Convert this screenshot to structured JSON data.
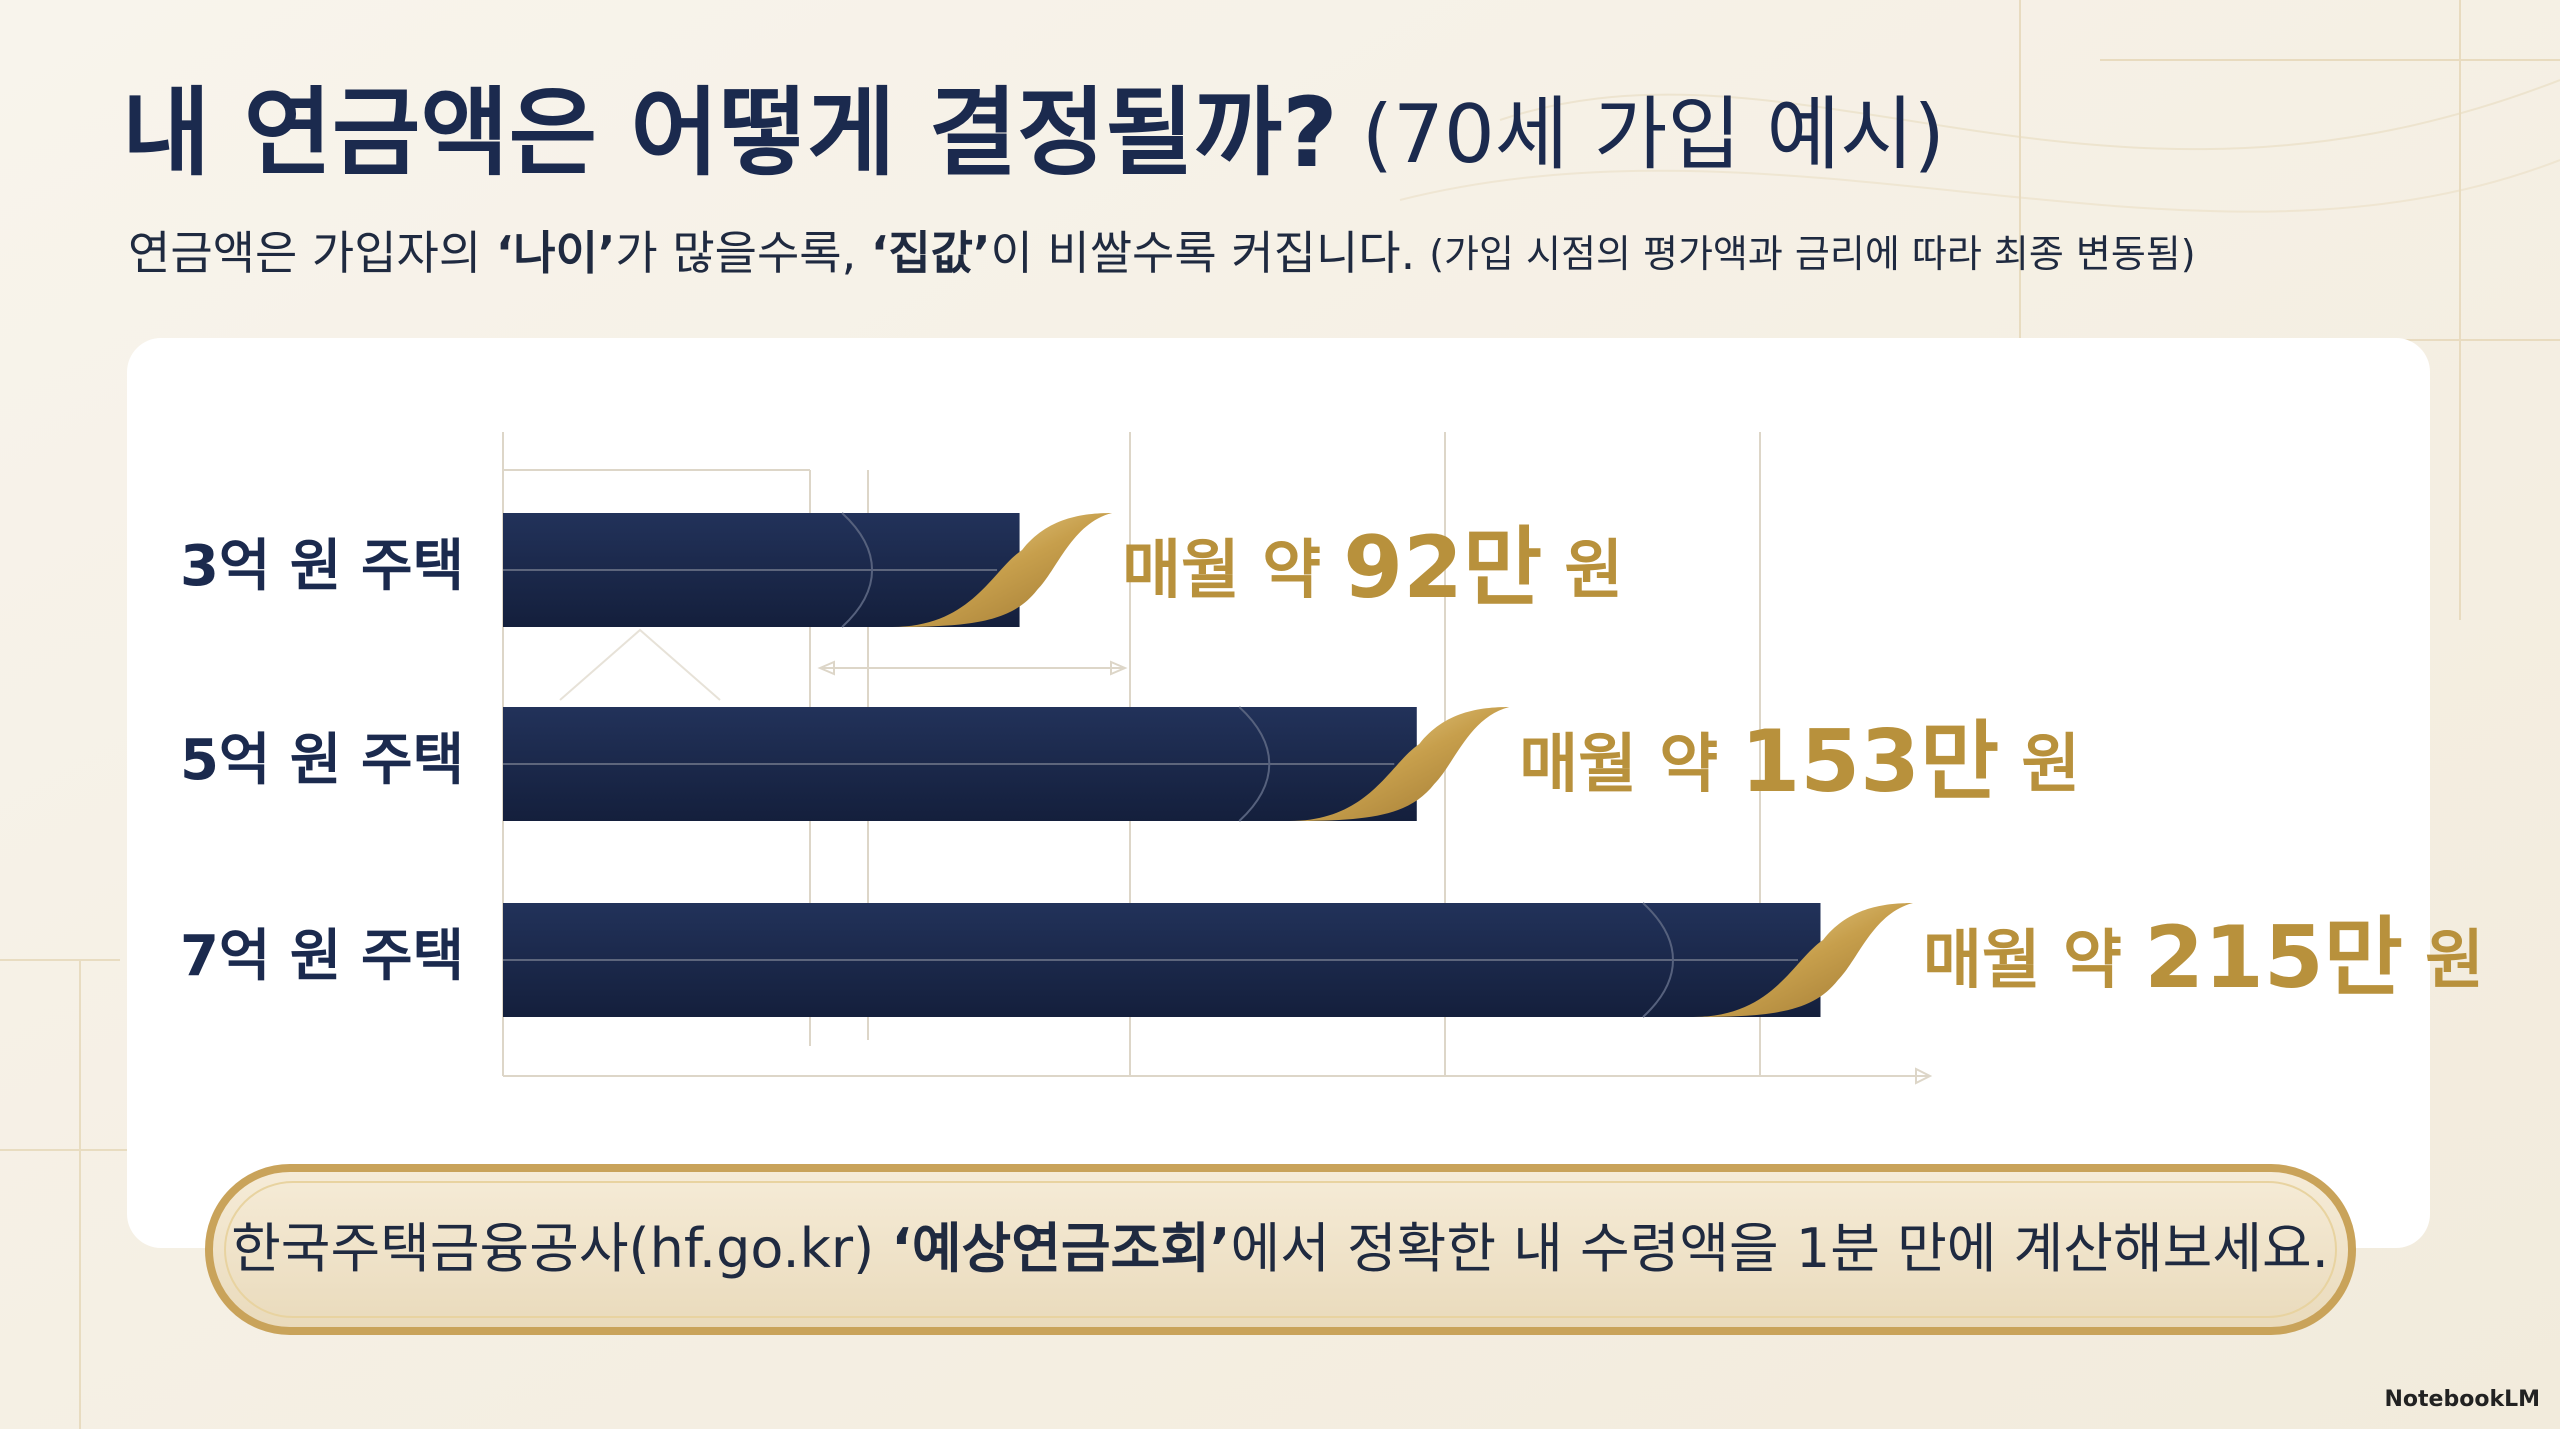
{
  "chart_data": {
    "type": "bar",
    "orientation": "horizontal",
    "title": "내 연금액은 어떻게 결정될까?",
    "title_note": "(70세 가입 예시)",
    "subtitle": [
      "연금액은 가입자의 ",
      "‘나이’",
      "가 많을수록, ",
      "‘집값’",
      "이 비쌀수록 커집니다."
    ],
    "subtitle_note": "(가입 시점의 평가액과 금리에 따라 최종 변동됨)",
    "categories": [
      "3억 원 주택",
      "5억 원 주택",
      "7억 원 주택"
    ],
    "values": [
      92,
      153,
      215
    ],
    "value_labels": [
      "매월 약 92만 원",
      "매월 약 153만 원",
      "매월 약 215만 원"
    ],
    "color": "#1b2a4e",
    "accent_color": "#b8913c",
    "footer": [
      "한국주택금융공사(hf.go.kr) ",
      "‘예상연금조회’",
      "에서 정확한 내 수령액을 1분 만에 계산해보세요."
    ],
    "watermark": "NotebookLM"
  }
}
